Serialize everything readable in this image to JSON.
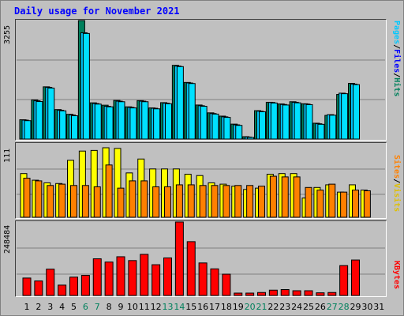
{
  "chart_data": {
    "type": "bar",
    "title": "Daily usage for November 2021",
    "categories": [
      "1",
      "2",
      "3",
      "4",
      "5",
      "6",
      "7",
      "8",
      "9",
      "10",
      "11",
      "12",
      "13",
      "14",
      "15",
      "16",
      "17",
      "18",
      "19",
      "20",
      "21",
      "22",
      "23",
      "24",
      "25",
      "26",
      "27",
      "28",
      "29",
      "30",
      "31"
    ],
    "weekend_days": [
      "6",
      "7",
      "13",
      "14",
      "20",
      "21",
      "27",
      "28"
    ],
    "panels": [
      {
        "id": "hits-files-pages",
        "ymax": 3255,
        "ymax_label": "3255",
        "side_labels": [
          "Pages",
          "Files",
          "Hits"
        ],
        "series": [
          {
            "name": "Hits",
            "color": "#00805c",
            "values": [
              530,
              1075,
              1435,
              810,
              680,
              3255,
              995,
              930,
              1060,
              885,
              1055,
              855,
              1000,
              2025,
              1555,
              935,
              720,
              630,
              410,
              65,
              780,
              1010,
              965,
              1025,
              970,
              435,
              650,
              1225,
              1530,
              0,
              0
            ]
          },
          {
            "name": "Files",
            "color": "#00c8ff",
            "values": [
              520,
              1050,
              1420,
              790,
              660,
              2920,
              975,
              900,
              1040,
              870,
              1040,
              845,
              985,
              2005,
              1540,
              915,
              700,
              610,
              390,
              55,
              765,
              1005,
              950,
              1010,
              960,
              420,
              670,
              1260,
              1510,
              0,
              0
            ]
          },
          {
            "name": "Pages",
            "color": "#00e0ff",
            "values": [
              505,
              1030,
              1400,
              775,
              640,
              2900,
              960,
              885,
              1025,
              855,
              1025,
              830,
              970,
              1990,
              1525,
              900,
              685,
              595,
              375,
              45,
              750,
              990,
              935,
              995,
              945,
              405,
              655,
              1245,
              1495,
              0,
              0
            ]
          }
        ]
      },
      {
        "id": "visits-sites",
        "ymax": 111,
        "ymax_label": "111",
        "side_labels": [
          "Sites",
          "Visits"
        ],
        "series": [
          {
            "name": "Visits",
            "color": "#ffff00",
            "values": [
              66,
              56,
              52,
              51,
              86,
              100,
              101,
              105,
              104,
              67,
              88,
              73,
              73,
              73,
              65,
              63,
              52,
              50,
              47,
              42,
              44,
              65,
              66,
              66,
              29,
              45,
              49,
              38,
              49,
              41,
              0
            ]
          },
          {
            "name": "Sites",
            "color": "#ff8000",
            "values": [
              59,
              55,
              48,
              50,
              48,
              48,
              46,
              79,
              44,
              55,
              55,
              46,
              46,
              49,
              49,
              48,
              48,
              48,
              48,
              48,
              47,
              62,
              61,
              61,
              45,
              41,
              50,
              38,
              41,
              40,
              0
            ]
          }
        ]
      },
      {
        "id": "kbytes",
        "ymax": 248484,
        "ymax_label": "248484",
        "side_labels": [
          "KBytes"
        ],
        "series": [
          {
            "name": "KBytes",
            "color": "#ff0000",
            "values": [
              59000,
              49000,
              89000,
              35000,
              62000,
              68000,
              124000,
              113000,
              131000,
              118000,
              139000,
              104000,
              127000,
              248484,
              182000,
              110000,
              90000,
              72000,
              8000,
              8000,
              10000,
              18000,
              20000,
              16000,
              16000,
              9000,
              10000,
              101000,
              120000,
              0,
              0
            ]
          }
        ]
      }
    ]
  }
}
